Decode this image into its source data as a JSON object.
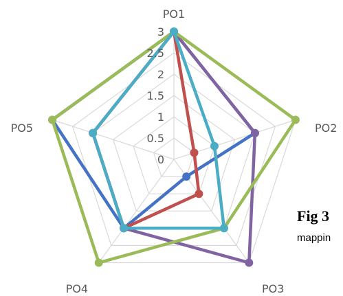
{
  "chart_data": {
    "type": "radar",
    "categories": [
      "PO1",
      "PO2",
      "PO3",
      "PO4",
      "PO5"
    ],
    "ticks": [
      "0",
      "0.5",
      "1",
      "1.5",
      "2",
      "2.5",
      "3"
    ],
    "rlim": [
      0,
      3
    ],
    "grid": true,
    "series": [
      {
        "color": "#4472C4",
        "values": [
          3,
          2,
          0.5,
          2,
          3
        ]
      },
      {
        "color": "#C0504D",
        "values": [
          3,
          0.5,
          1,
          2,
          2
        ]
      },
      {
        "color": "#8064A2",
        "values": [
          3,
          2,
          3,
          2,
          2
        ]
      },
      {
        "color": "#9BBB59",
        "values": [
          3,
          3,
          2,
          3,
          3
        ]
      },
      {
        "color": "#4BACC6",
        "values": [
          3,
          1,
          2,
          2,
          2
        ]
      }
    ]
  },
  "caption": {
    "fig_label": "Fig 3",
    "text": "mappin"
  }
}
